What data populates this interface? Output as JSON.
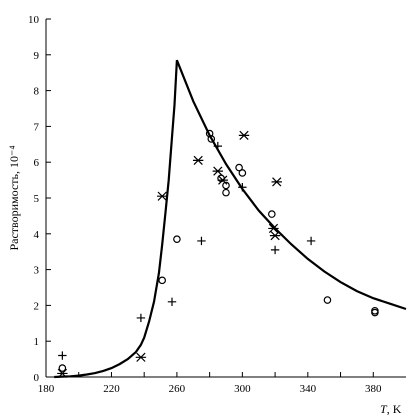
{
  "chart_data": {
    "type": "scatter",
    "title": "",
    "xlabel": "T, K",
    "xlabel_var": "T",
    "xlabel_unit": ", K",
    "ylabel": "Растворимость, 10⁻⁴",
    "xlim": [
      180,
      400
    ],
    "ylim": [
      0,
      10
    ],
    "x_ticks": [
      180,
      200,
      220,
      240,
      260,
      280,
      300,
      320,
      340,
      360,
      380
    ],
    "x_tick_labels": [
      "180",
      "",
      "220",
      "",
      "260",
      "",
      "300",
      "",
      "340",
      "",
      "380"
    ],
    "y_ticks": [
      0,
      1,
      2,
      3,
      4,
      5,
      6,
      7,
      8,
      9,
      10
    ],
    "y_tick_labels": [
      "0",
      "1",
      "2",
      "3",
      "4",
      "5",
      "6",
      "7",
      "8",
      "9",
      "10"
    ],
    "grid": false,
    "legend": "none",
    "series": [
      {
        "marker": "curve",
        "x": [
          185,
          190,
          195,
          200,
          205,
          210,
          215,
          220,
          225,
          230,
          235,
          238,
          240,
          243,
          246,
          249,
          251,
          253,
          255,
          257,
          258.5,
          260,
          270,
          280,
          290,
          300,
          310,
          320,
          330,
          340,
          350,
          360,
          370,
          380,
          390,
          400
        ],
        "y": [
          0,
          0.01,
          0.02,
          0.04,
          0.07,
          0.11,
          0.17,
          0.25,
          0.36,
          0.5,
          0.7,
          0.9,
          1.1,
          1.55,
          2.1,
          2.9,
          3.7,
          4.6,
          5.5,
          6.7,
          7.6,
          8.85,
          7.7,
          6.75,
          5.95,
          5.25,
          4.65,
          4.15,
          3.7,
          3.3,
          2.95,
          2.65,
          2.4,
          2.2,
          2.05,
          1.9
        ]
      },
      {
        "marker": "circle",
        "x": [
          190,
          251,
          260,
          280,
          281,
          287,
          290,
          290,
          298,
          300,
          318,
          352,
          381,
          381
        ],
        "y": [
          0.25,
          2.7,
          3.85,
          6.8,
          6.65,
          5.55,
          5.35,
          5.15,
          5.85,
          5.7,
          4.55,
          2.15,
          1.85,
          1.8
        ]
      },
      {
        "marker": "plus",
        "x": [
          190,
          238,
          257,
          275,
          285,
          300,
          320,
          342
        ],
        "y": [
          0.6,
          1.65,
          2.1,
          3.8,
          6.45,
          5.3,
          3.55,
          3.8
        ]
      },
      {
        "marker": "asterisk",
        "x": [
          190,
          238,
          251,
          273,
          285,
          288,
          301,
          319,
          320,
          321
        ],
        "y": [
          0.1,
          0.55,
          5.05,
          6.05,
          5.75,
          5.5,
          6.75,
          4.15,
          3.95,
          5.45
        ]
      }
    ]
  }
}
